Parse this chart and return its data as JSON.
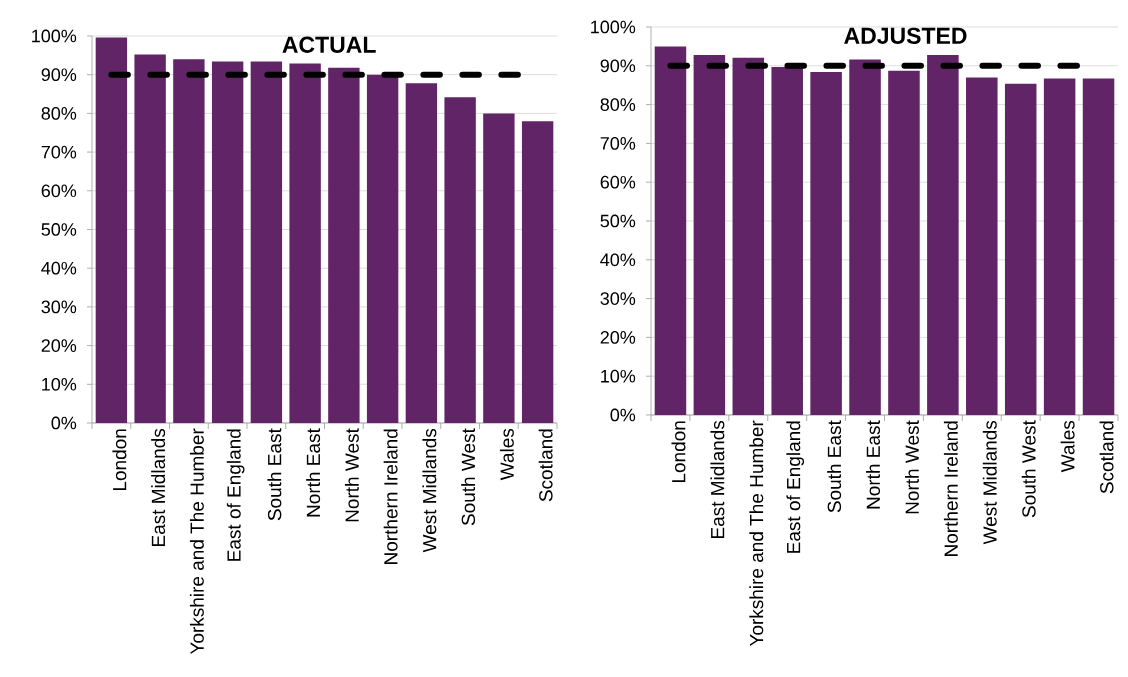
{
  "chart_data": [
    {
      "type": "bar",
      "title": "ACTUAL",
      "categories": [
        "London",
        "East Midlands",
        "Yorkshire and The Humber",
        "East of England",
        "South East",
        "North East",
        "North West",
        "Northern Ireland",
        "West Midlands",
        "South West",
        "Wales",
        "Scotland"
      ],
      "values": [
        99.6,
        95.2,
        94.0,
        93.4,
        93.4,
        92.9,
        91.8,
        90.0,
        87.8,
        84.2,
        80.0,
        78.0
      ],
      "color": "#612466",
      "ylim": [
        0,
        100
      ],
      "yticks": [
        {
          "value": 0,
          "label": "0%"
        },
        {
          "value": 10,
          "label": "10%"
        },
        {
          "value": 20,
          "label": "20%"
        },
        {
          "value": 30,
          "label": "30%"
        },
        {
          "value": 40,
          "label": "40%"
        },
        {
          "value": 50,
          "label": "50%"
        },
        {
          "value": 60,
          "label": "60%"
        },
        {
          "value": 70,
          "label": "70%"
        },
        {
          "value": 80,
          "label": "80%"
        },
        {
          "value": 90,
          "label": "90%"
        },
        {
          "value": 100,
          "label": "100%"
        }
      ],
      "grid": "y",
      "ref_lines": [
        {
          "axis": "y",
          "value": 90,
          "color": "#000000",
          "line_style": "dashed"
        }
      ]
    },
    {
      "type": "bar",
      "title": "ADJUSTED",
      "categories": [
        "London",
        "East Midlands",
        "Yorkshire and The Humber",
        "East of England",
        "South East",
        "North East",
        "North West",
        "Northern Ireland",
        "West Midlands",
        "South West",
        "Wales",
        "Scotland"
      ],
      "values": [
        95.0,
        92.8,
        92.1,
        89.7,
        88.4,
        91.6,
        88.7,
        92.8,
        87.0,
        85.4,
        86.7,
        86.7
      ],
      "color": "#612466",
      "ylim": [
        0,
        100
      ],
      "yticks": [
        {
          "value": 0,
          "label": "0%"
        },
        {
          "value": 10,
          "label": "10%"
        },
        {
          "value": 20,
          "label": "20%"
        },
        {
          "value": 30,
          "label": "30%"
        },
        {
          "value": 40,
          "label": "40%"
        },
        {
          "value": 50,
          "label": "50%"
        },
        {
          "value": 60,
          "label": "60%"
        },
        {
          "value": 70,
          "label": "70%"
        },
        {
          "value": 80,
          "label": "80%"
        },
        {
          "value": 90,
          "label": "90%"
        },
        {
          "value": 100,
          "label": "100%"
        }
      ],
      "grid": "y",
      "ref_lines": [
        {
          "axis": "y",
          "value": 90,
          "color": "#000000",
          "line_style": "dashed"
        }
      ]
    }
  ]
}
